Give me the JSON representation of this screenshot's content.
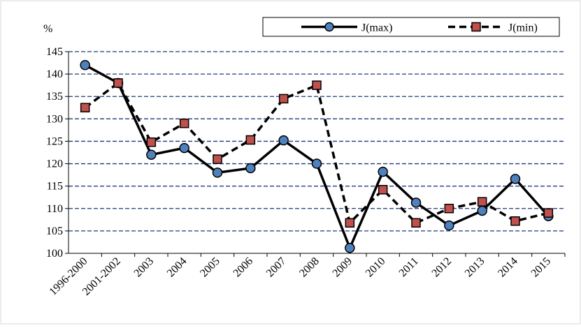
{
  "chart_data": {
    "type": "line",
    "y_unit": "%",
    "categories": [
      "1996-2000",
      "2001-2002",
      "2003",
      "2004",
      "2005",
      "2006",
      "2007",
      "2008",
      "2009",
      "2010",
      "2011",
      "2012",
      "2013",
      "2014",
      "2015"
    ],
    "series": [
      {
        "name": "J(max)",
        "color": "#000000",
        "marker": "circle",
        "marker_color": "#4f81bd",
        "dash": "solid",
        "values": [
          142,
          138,
          122,
          123.5,
          118,
          119,
          125.2,
          120,
          101.2,
          118.2,
          111.3,
          106.2,
          109.5,
          116.6,
          108.3
        ]
      },
      {
        "name": "J(min)",
        "color": "#000000",
        "marker": "square",
        "marker_color": "#c0504d",
        "dash": "dashed",
        "values": [
          132.5,
          138,
          124.8,
          129,
          121,
          125.3,
          134.5,
          137.5,
          106.8,
          114.2,
          106.8,
          110,
          111.5,
          107.2,
          109
        ]
      }
    ],
    "ylim": [
      100,
      145
    ],
    "yticks": [
      100,
      105,
      110,
      115,
      120,
      125,
      130,
      135,
      140,
      145
    ],
    "grid": true,
    "grid_color": "#1f3a7a",
    "legend": "top-right"
  }
}
